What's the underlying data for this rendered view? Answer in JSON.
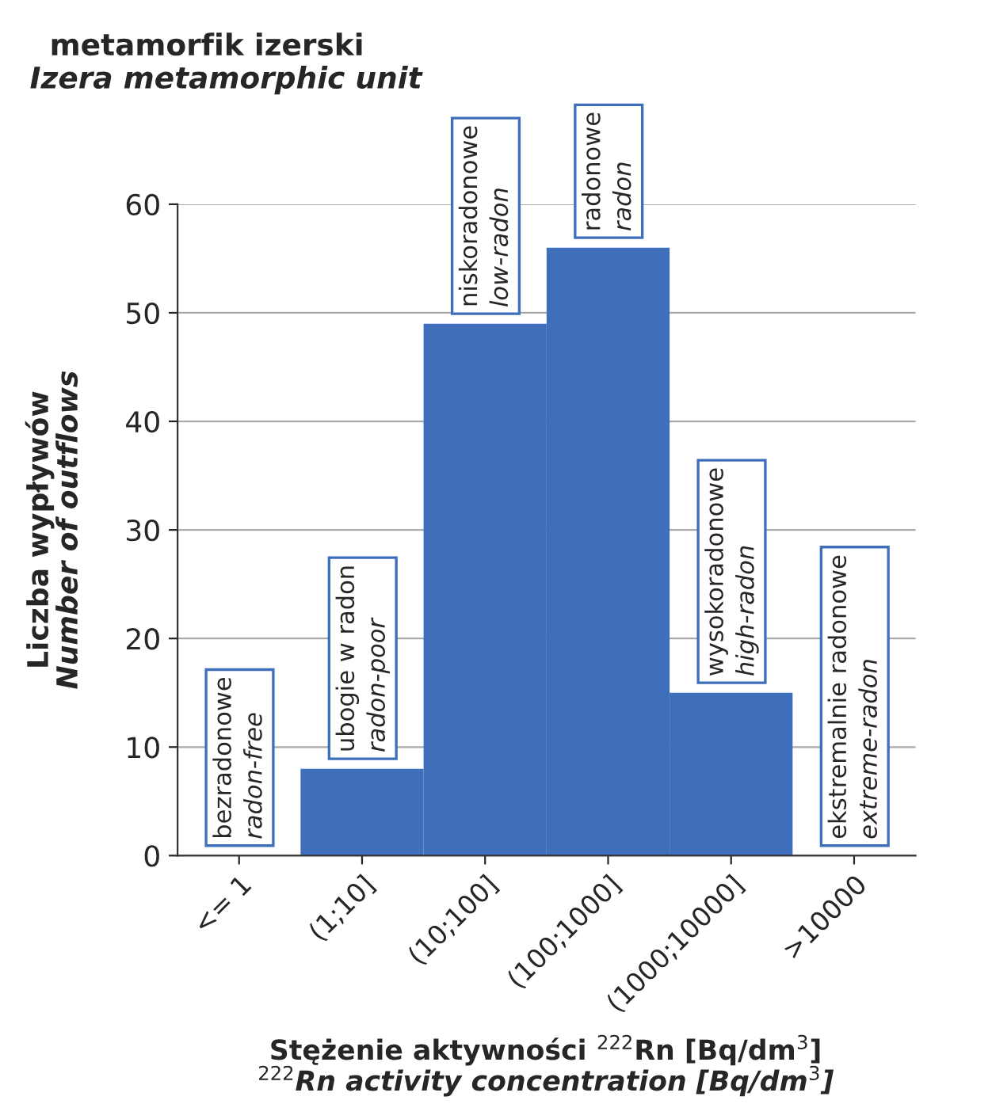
{
  "chart_data": {
    "type": "bar",
    "title": "metamorfik izerski",
    "subtitle": "Izera metamorphic unit",
    "categories": [
      "<= 1",
      "(1;10]",
      "(10;100]",
      "(100;1000]",
      "(1000;10000]",
      ">10000"
    ],
    "values": [
      0,
      8,
      49,
      56,
      15,
      0
    ],
    "color": "#3f6fba",
    "xlabel": "Stężenie aktywności $^{222}$Rn [Bq/dm$^{3}$]\n$^{222}$Rn activity concentration [Bq/dm$^{3}$]",
    "ylabel": "Liczba wypływów\nNumber of outflows",
    "annotations": [
      "bezradonowe\nradon-free",
      "ubogie w radon\nradon-poor",
      "niskoradonowe\nlow-radon",
      "radonowe\nradon",
      "wysokoradonowe\nhigh-radon",
      "ekstremalnie radonowe\nextreme-radon"
    ],
    "ylim": [
      0,
      60
    ],
    "yticks": [
      0,
      10,
      20,
      30,
      40,
      50,
      60
    ],
    "grid": "y",
    "legend": false
  }
}
